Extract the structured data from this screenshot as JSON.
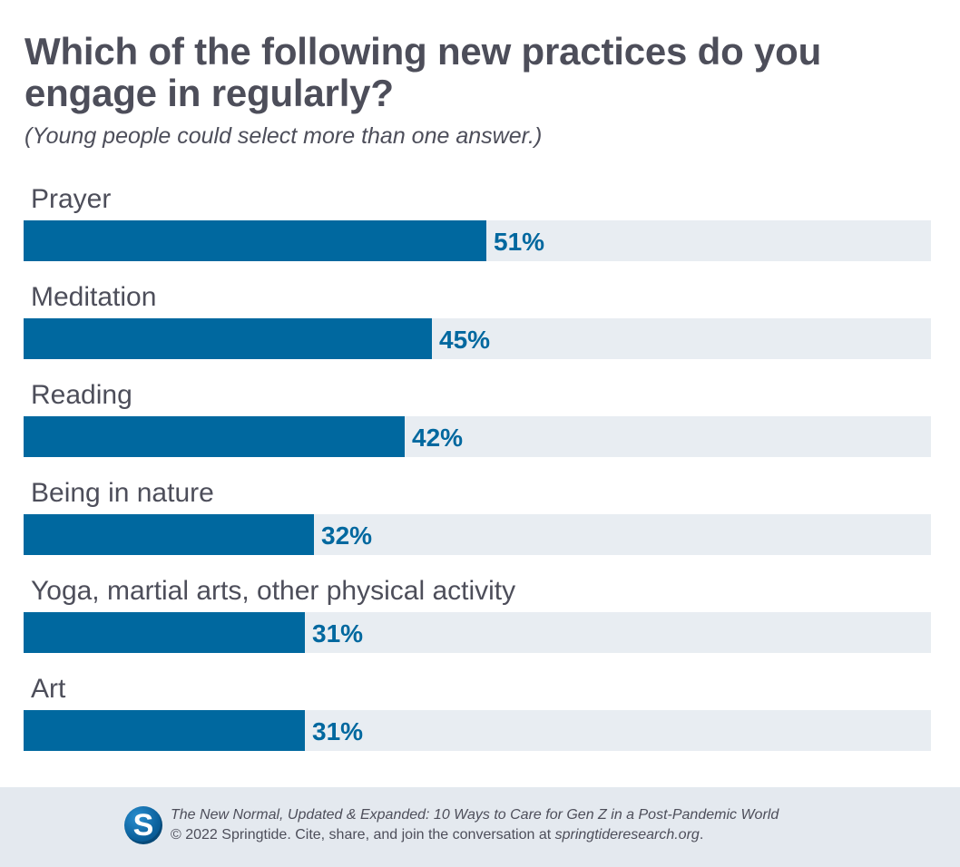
{
  "title": "Which of the following new practices do you engage in regularly?",
  "subtitle": "(Young people could select more than one answer.)",
  "chart_data": {
    "type": "bar",
    "orientation": "horizontal",
    "categories": [
      "Prayer",
      "Meditation",
      "Reading",
      "Being in nature",
      "Yoga, martial arts, other physical activity",
      "Art"
    ],
    "values": [
      51,
      45,
      42,
      32,
      31,
      31
    ],
    "value_labels": [
      "51%",
      "45%",
      "42%",
      "32%",
      "31%",
      "31%"
    ],
    "xlim": [
      0,
      100
    ],
    "grid": false,
    "bar_color": "#00689f",
    "track_color": "#e8edf2",
    "label_color": "#4d4e5a",
    "value_color": "#00689f"
  },
  "footer": {
    "logo_letter": "S",
    "logo_color": "#0a5f9a",
    "line1": "The New Normal, Updated & Expanded: 10 Ways to Care for Gen Z in a Post-Pandemic World",
    "line2_prefix": "© 2022 Springtide. Cite, share, and join the conversation at ",
    "line2_link": "springtideresearch.org",
    "line2_suffix": ".",
    "background": "#e4e9ef"
  }
}
